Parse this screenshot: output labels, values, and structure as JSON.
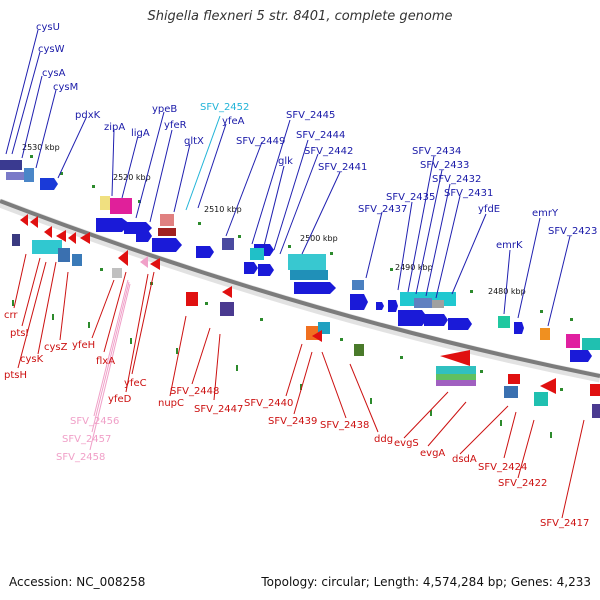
{
  "title": "Shigella flexneri 5 str. 8401, complete genome",
  "footer": {
    "accession": "Accession: NC_008258",
    "summary": "Topology: circular; Length: 4,574,284 bp; Genes: 4,233"
  },
  "colors": {
    "plus_strand_label": "#1a1aa8",
    "minus_strand_label": "#cc1111",
    "highlight_plus": "#22b4d8",
    "highlight_minus": "#f0a0c8",
    "backbone": "#888888"
  },
  "ticks": [
    "2530 kbp",
    "2520 kbp",
    "2510 kbp",
    "2500 kbp",
    "2490 kbp",
    "2480 kbp"
  ],
  "labels_plus": [
    "cysU",
    "cysW",
    "cysA",
    "cysM",
    "pdxK",
    "zipA",
    "ligA",
    "ypeB",
    "yfeR",
    "gltX",
    "yfeA",
    "SFV_2449",
    "glk",
    "SFV_2445",
    "SFV_2444",
    "SFV_2442",
    "SFV_2441",
    "SFV_2437",
    "SFV_2435",
    "SFV_2434",
    "SFV_2433",
    "SFV_2432",
    "SFV_2431",
    "yfdE",
    "emrK",
    "emrY",
    "SFV_2423"
  ],
  "label_plus_highlight": "SFV_2452",
  "labels_minus": [
    "crr",
    "ptsI",
    "ptsH",
    "cysK",
    "cysZ",
    "yfeH",
    "flxA",
    "yfeC",
    "yfeD",
    "nupC",
    "SFV_2448",
    "SFV_2447",
    "SFV_2440",
    "SFV_2439",
    "SFV_2438",
    "ddg",
    "evgS",
    "evgA",
    "dsdA",
    "SFV_2424",
    "SFV_2422",
    "SFV_2417"
  ],
  "labels_minus_highlight": [
    "SFV_2456",
    "SFV_2457",
    "SFV_2458"
  ]
}
